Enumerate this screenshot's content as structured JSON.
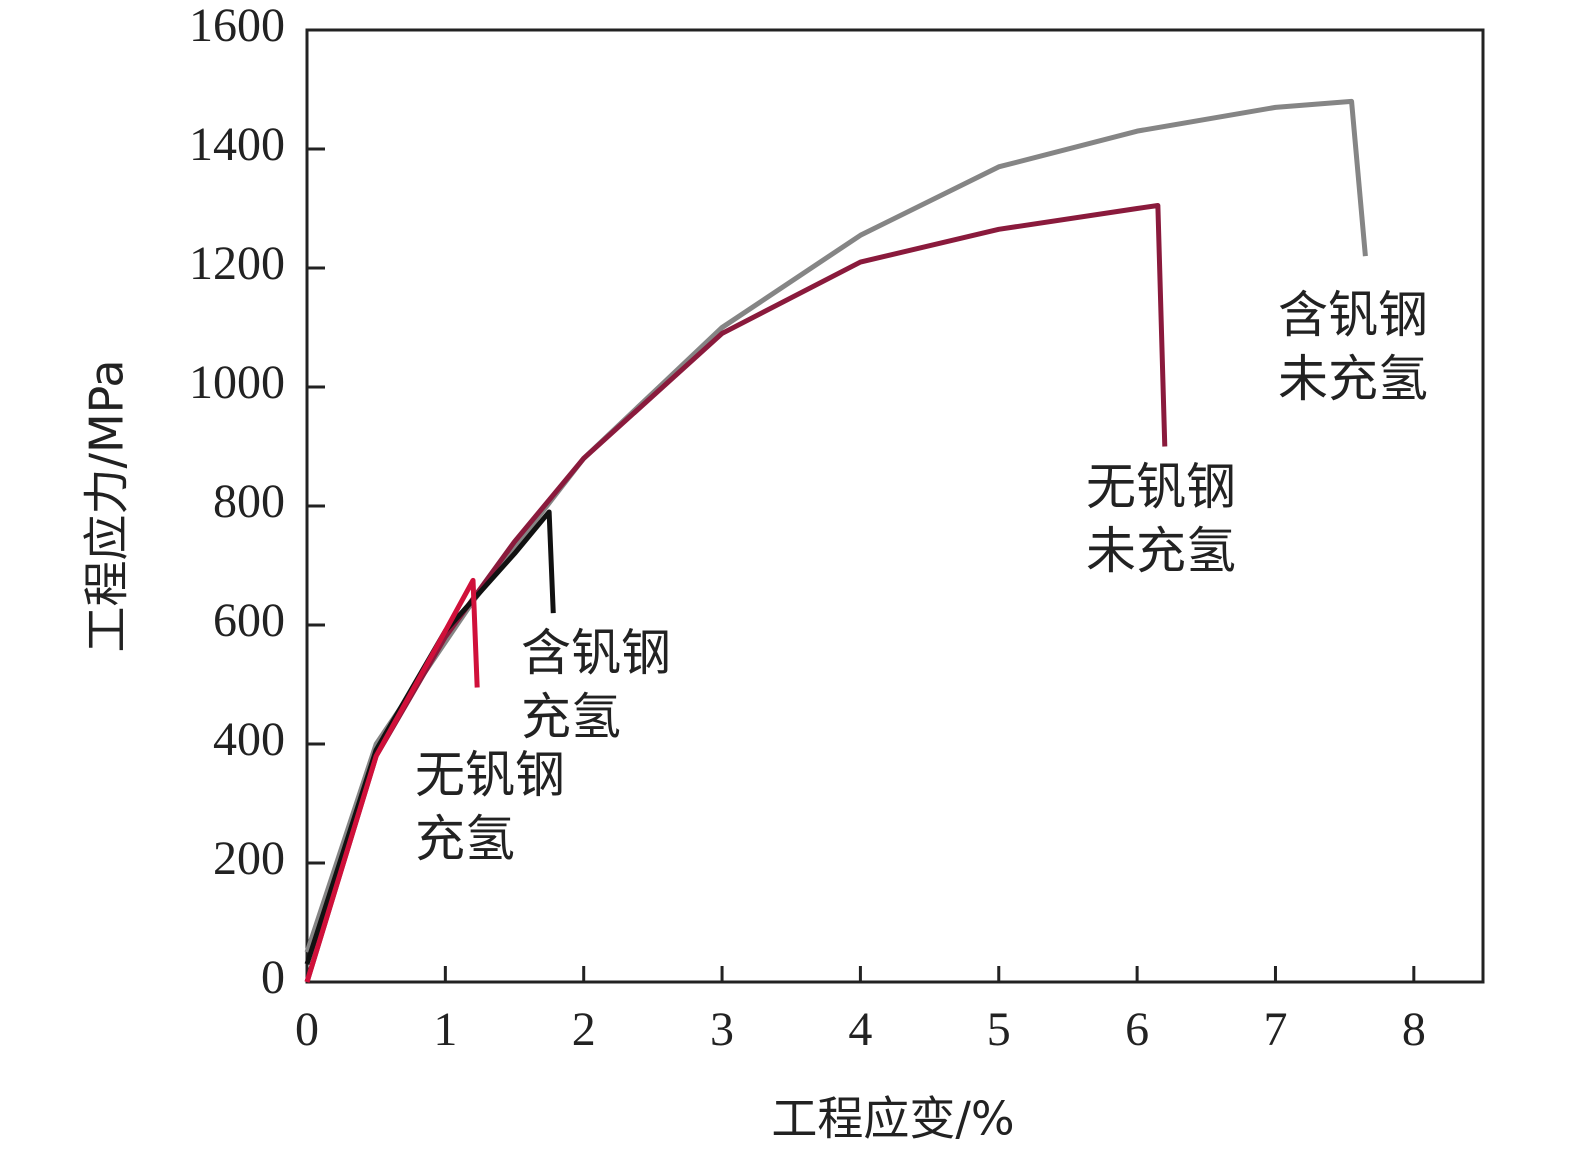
{
  "chart_data": {
    "type": "line",
    "xlabel": "工程应变/%",
    "ylabel": "工程应力/MPa",
    "xlim": [
      0,
      8.5
    ],
    "ylim": [
      0,
      1600
    ],
    "xticks": [
      0,
      1,
      2,
      3,
      4,
      5,
      6,
      7,
      8
    ],
    "yticks": [
      0,
      200,
      400,
      600,
      800,
      1000,
      1200,
      1400,
      1600
    ],
    "series": [
      {
        "name": [
          "含钒钢",
          "未充氢"
        ],
        "color": "#858585",
        "x": [
          0,
          0.5,
          1.2,
          2,
          3,
          4,
          5,
          6,
          7,
          7.55,
          7.65
        ],
        "values": [
          50,
          400,
          640,
          880,
          1100,
          1255,
          1370,
          1430,
          1470,
          1480,
          1220
        ]
      },
      {
        "name": [
          "无钒钢",
          "未充氢"
        ],
        "color": "#8a1a3c",
        "x": [
          0,
          0.5,
          1,
          1.5,
          2,
          3,
          4,
          5,
          6,
          6.15,
          6.2
        ],
        "values": [
          0,
          380,
          580,
          740,
          880,
          1090,
          1210,
          1265,
          1300,
          1305,
          900
        ]
      },
      {
        "name": [
          "含钒钢",
          "充氢"
        ],
        "color": "#111111",
        "x": [
          0,
          0.5,
          1,
          1.5,
          1.75,
          1.78
        ],
        "values": [
          30,
          390,
          590,
          720,
          790,
          620
        ]
      },
      {
        "name": [
          "无钒钢",
          "充氢"
        ],
        "color": "#d0103a",
        "x": [
          0,
          0.5,
          1,
          1.2,
          1.23
        ],
        "values": [
          0,
          380,
          590,
          675,
          495
        ]
      }
    ]
  }
}
